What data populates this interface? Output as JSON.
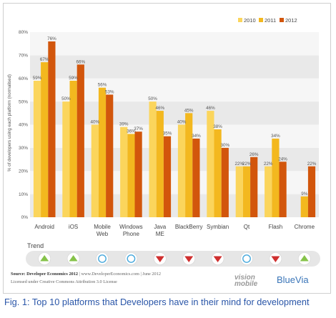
{
  "chart_data": {
    "type": "bar",
    "ylabel": "% of developers using each platform (normalised)",
    "ylim": [
      0,
      80
    ],
    "yticks": [
      0,
      10,
      20,
      30,
      40,
      50,
      60,
      70,
      80
    ],
    "ytick_labels": [
      "0%",
      "10%",
      "20%",
      "30%",
      "40%",
      "50%",
      "60%",
      "70%",
      "80%"
    ],
    "categories": [
      "Android",
      "iOS",
      "Mobile Web",
      "Windows Phone",
      "Java ME",
      "BlackBerry",
      "Symbian",
      "Qt",
      "Flash",
      "Chrome"
    ],
    "series": [
      {
        "name": "2010",
        "color": "#fbd55c",
        "values": [
          59,
          50,
          40,
          39,
          50,
          40,
          46,
          22,
          22,
          null
        ],
        "labels": [
          "59%",
          "50%",
          "40%",
          "39%",
          "50%",
          "40%",
          "46%",
          "22%",
          "22%",
          ""
        ]
      },
      {
        "name": "2011",
        "color": "#f3b81f",
        "values": [
          67,
          59,
          56,
          36,
          46,
          45,
          38,
          22,
          34,
          9
        ],
        "labels": [
          "67%",
          "59%",
          "56%",
          "36%",
          "46%",
          "45%",
          "38%",
          "22%",
          "34%",
          "9%"
        ]
      },
      {
        "name": "2012",
        "color": "#d2560c",
        "values": [
          76,
          66,
          53,
          37,
          35,
          34,
          30,
          26,
          24,
          22
        ],
        "labels": [
          "76%",
          "66%",
          "53%",
          "37%",
          "35%",
          "34%",
          "30%",
          "26%",
          "24%",
          "22%"
        ]
      }
    ],
    "grid": "alternating horizontal bands",
    "legend": "top-right",
    "trend_label": "Trend",
    "trend": [
      "up",
      "up",
      "flat",
      "flat",
      "down",
      "down",
      "down",
      "flat",
      "down",
      "up"
    ],
    "trend_colors": {
      "up": "#86c34a",
      "down": "#cf2f2f",
      "flat": "#46a8dc"
    }
  },
  "source_line": "Source: Developer Economics 2012",
  "source_rest": " | www.DeveloperEconomics.com | June 2012",
  "license": "Licensed under Creative Commons Attribution 3.0 License",
  "brand_vision": "vision mobile",
  "brand_bluevia": "BlueVia",
  "caption": "Fig. 1: Top 10 platforms that Developers have in their mind for development"
}
